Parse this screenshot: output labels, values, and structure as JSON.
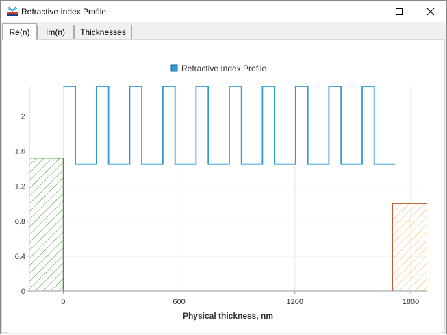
{
  "window": {
    "title": "Refractive Index Profile",
    "app_icon": "layers-icon",
    "controls": [
      "minimize-icon",
      "maximize-icon",
      "close-icon"
    ]
  },
  "tabs": [
    {
      "label": "Re(n)",
      "active": true
    },
    {
      "label": "Im(n)",
      "active": false
    },
    {
      "label": "Thicknesses",
      "active": false
    }
  ],
  "chart_data": {
    "type": "line",
    "legend": {
      "label": "Refractive Index Profile",
      "placement": "top-center",
      "color": "#2e9bd6"
    },
    "xlabel": "Physical thickness, nm",
    "ylabel": "",
    "x_ticks": [
      0,
      600,
      1200,
      1800
    ],
    "y_ticks": [
      0,
      0.4,
      0.8,
      1.2,
      1.6,
      2
    ],
    "xlim": [
      -175,
      1885
    ],
    "ylim": [
      0,
      2.34
    ],
    "grid": true,
    "substrate": {
      "x_range": [
        -175,
        0
      ],
      "n": 1.52,
      "color": "#3a8f2b",
      "pattern": "hatched"
    },
    "ambient": {
      "x_range": [
        1705,
        1885
      ],
      "n": 1.0,
      "color": "#c0502a",
      "fill": "#e6b84a",
      "pattern": "hatched"
    },
    "series": [
      {
        "color": "#2e9bd6",
        "layers": [
          {
            "n": 2.34,
            "d": 63
          },
          {
            "n": 1.45,
            "d": 109
          },
          {
            "n": 2.34,
            "d": 63
          },
          {
            "n": 1.45,
            "d": 109
          },
          {
            "n": 2.34,
            "d": 63
          },
          {
            "n": 1.45,
            "d": 109
          },
          {
            "n": 2.34,
            "d": 63
          },
          {
            "n": 1.45,
            "d": 109
          },
          {
            "n": 2.34,
            "d": 63
          },
          {
            "n": 1.45,
            "d": 109
          },
          {
            "n": 2.34,
            "d": 63
          },
          {
            "n": 1.45,
            "d": 109
          },
          {
            "n": 2.34,
            "d": 63
          },
          {
            "n": 1.45,
            "d": 109
          },
          {
            "n": 2.34,
            "d": 63
          },
          {
            "n": 1.45,
            "d": 109
          },
          {
            "n": 2.34,
            "d": 63
          },
          {
            "n": 1.45,
            "d": 109
          },
          {
            "n": 2.34,
            "d": 63
          },
          {
            "n": 1.45,
            "d": 109
          }
        ]
      }
    ]
  }
}
